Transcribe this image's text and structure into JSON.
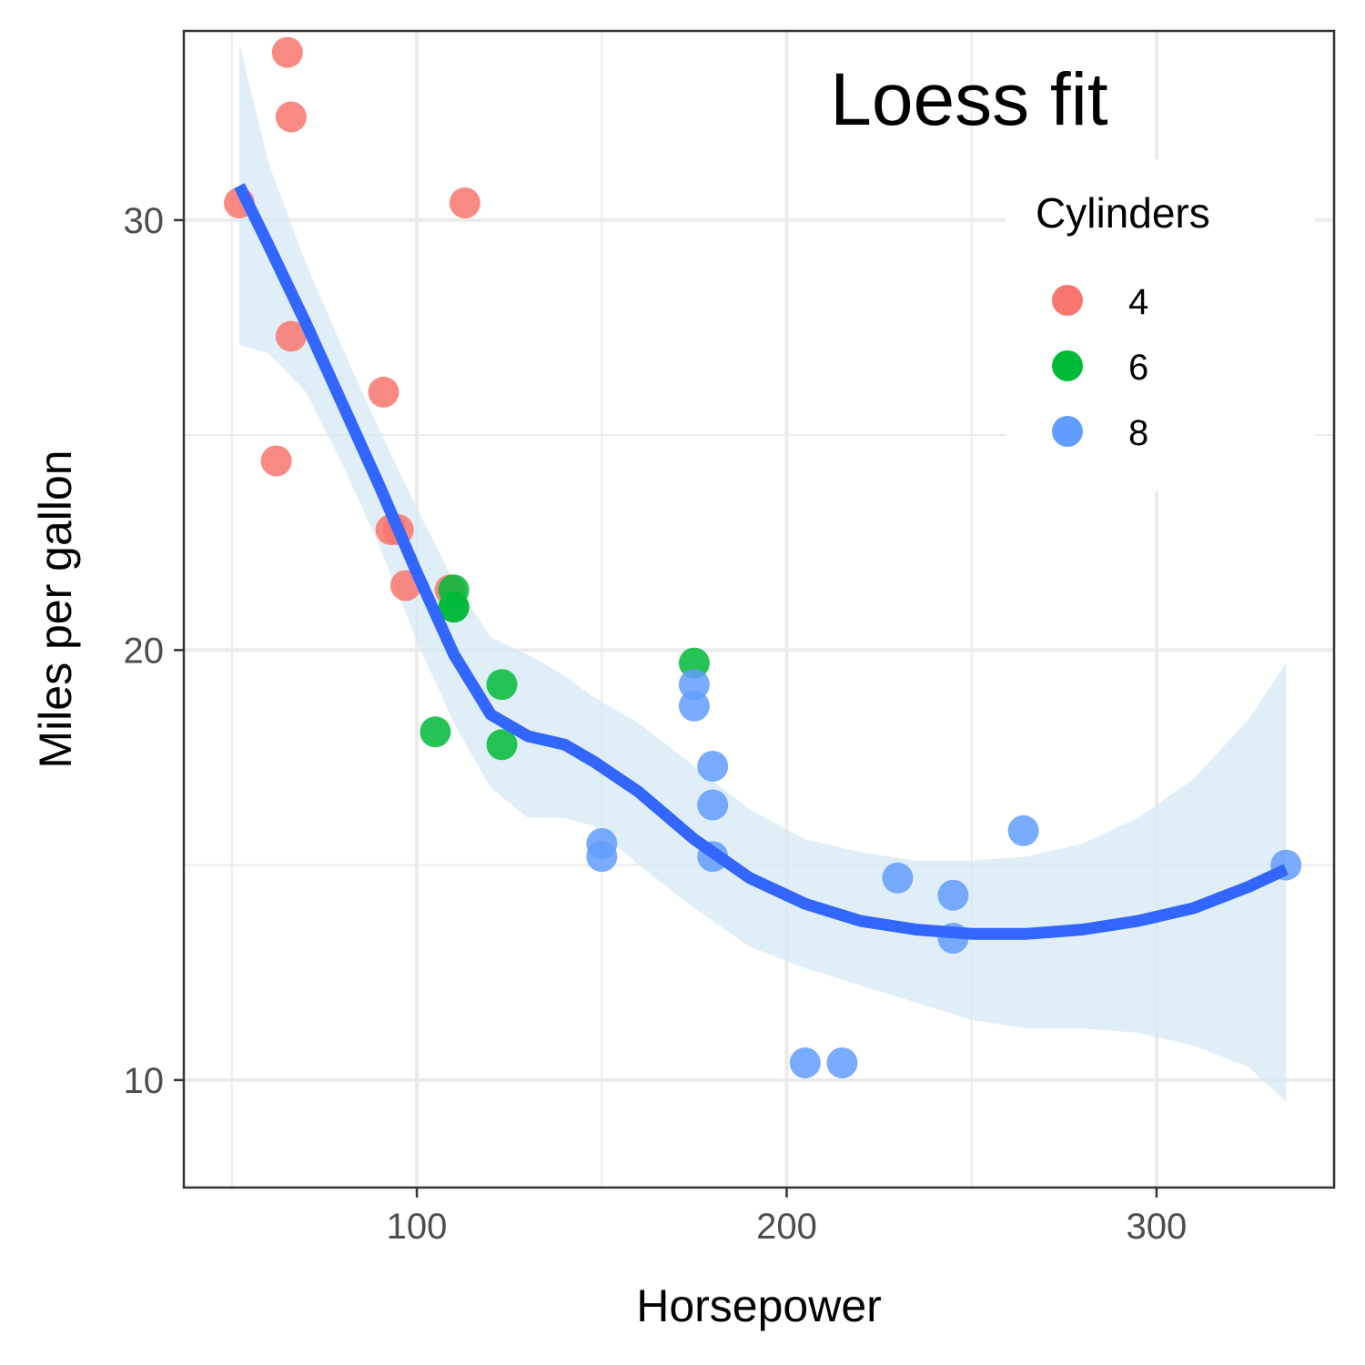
{
  "chart_data": {
    "type": "scatter",
    "title": "Loess fit",
    "xlabel": "Horsepower",
    "ylabel": "Miles per gallon",
    "xlim": [
      37,
      348
    ],
    "ylim": [
      7.5,
      34.4
    ],
    "x_ticks": [
      100,
      200,
      300
    ],
    "y_ticks": [
      10,
      20,
      30
    ],
    "grid": true,
    "legend": {
      "title": "Cylinders",
      "position": "top-right",
      "entries": [
        {
          "label": "4",
          "color": "#F8766D"
        },
        {
          "label": "6",
          "color": "#00BA38"
        },
        {
          "label": "8",
          "color": "#619CFF"
        }
      ]
    },
    "series": [
      {
        "name": "4",
        "color": "#F8766D",
        "points": [
          [
            52,
            30.4
          ],
          [
            65,
            33.9
          ],
          [
            66,
            32.4
          ],
          [
            113,
            30.4
          ],
          [
            66,
            27.3
          ],
          [
            91,
            26.0
          ],
          [
            62,
            24.4
          ],
          [
            93,
            22.8
          ],
          [
            95,
            22.8
          ],
          [
            97,
            21.5
          ],
          [
            109,
            21.4
          ]
        ]
      },
      {
        "name": "6",
        "color": "#00BA38",
        "points": [
          [
            110,
            21.0
          ],
          [
            110,
            21.0
          ],
          [
            110,
            21.4
          ],
          [
            175,
            19.7
          ],
          [
            105,
            18.1
          ],
          [
            123,
            19.2
          ],
          [
            123,
            17.8
          ]
        ]
      },
      {
        "name": "8",
        "color": "#619CFF",
        "points": [
          [
            175,
            18.7
          ],
          [
            175,
            19.2
          ],
          [
            180,
            17.3
          ],
          [
            180,
            16.4
          ],
          [
            180,
            15.2
          ],
          [
            150,
            15.5
          ],
          [
            150,
            15.2
          ],
          [
            205,
            10.4
          ],
          [
            215,
            10.4
          ],
          [
            230,
            14.7
          ],
          [
            245,
            14.3
          ],
          [
            245,
            13.3
          ],
          [
            264,
            15.8
          ],
          [
            335,
            15.0
          ]
        ]
      }
    ],
    "smooth": {
      "method": "loess",
      "color": "#3366FF",
      "ribbon_color": "#D6EAF4",
      "x": [
        52,
        60,
        70,
        80,
        90,
        100,
        110,
        120,
        130,
        140,
        148,
        160,
        175,
        190,
        205,
        220,
        235,
        250,
        265,
        280,
        295,
        310,
        325,
        335
      ],
      "y": [
        30.8,
        29.4,
        27.6,
        25.7,
        23.8,
        21.8,
        19.9,
        18.5,
        18.0,
        17.8,
        17.4,
        16.7,
        15.6,
        14.7,
        14.1,
        13.7,
        13.5,
        13.4,
        13.4,
        13.5,
        13.7,
        14.0,
        14.5,
        14.9
      ],
      "upper": [
        34.1,
        31.3,
        29.0,
        27.0,
        25.1,
        23.3,
        21.6,
        20.3,
        19.9,
        19.4,
        18.9,
        18.3,
        17.3,
        16.3,
        15.6,
        15.3,
        15.1,
        15.1,
        15.2,
        15.5,
        16.1,
        17.0,
        18.4,
        19.7
      ],
      "lower": [
        27.1,
        26.9,
        26.0,
        24.3,
        22.4,
        20.2,
        18.3,
        16.8,
        16.1,
        16.1,
        15.9,
        15.0,
        14.0,
        13.1,
        12.6,
        12.2,
        11.8,
        11.4,
        11.2,
        11.2,
        11.1,
        10.8,
        10.3,
        9.5
      ]
    }
  }
}
